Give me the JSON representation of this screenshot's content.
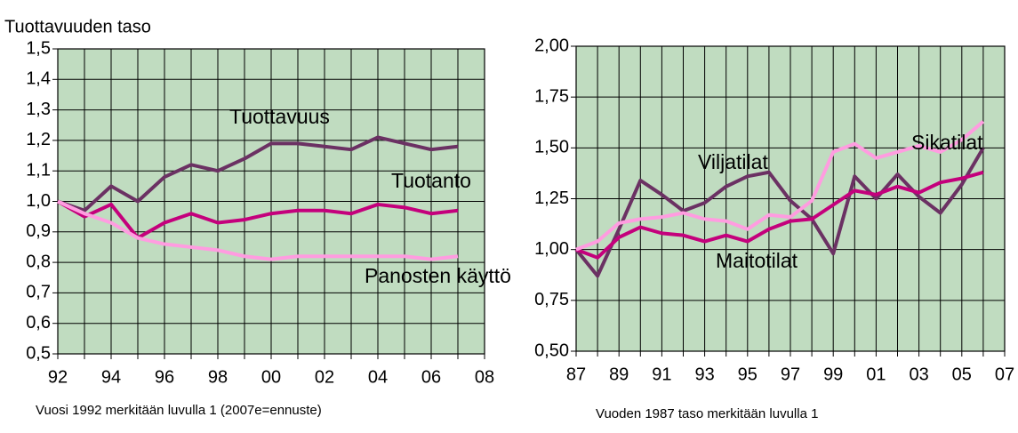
{
  "chart_data": [
    {
      "type": "line",
      "ylabel": "Tuottavuuden taso",
      "caption": "Vuosi 1992 merkitään luvulla 1 (2007e=ennuste)",
      "x": [
        1992,
        1993,
        1994,
        1995,
        1996,
        1997,
        1998,
        1999,
        2000,
        2001,
        2002,
        2003,
        2004,
        2005,
        2006,
        2007
      ],
      "series": [
        {
          "name": "Tuottavuus",
          "color": "#6b3163",
          "values": [
            1.0,
            0.97,
            1.05,
            1.0,
            1.08,
            1.12,
            1.1,
            1.14,
            1.19,
            1.19,
            1.18,
            1.17,
            1.21,
            1.19,
            1.17,
            1.18
          ]
        },
        {
          "name": "Tuotanto",
          "color": "#c4007c",
          "values": [
            1.0,
            0.95,
            0.99,
            0.88,
            0.93,
            0.96,
            0.93,
            0.94,
            0.96,
            0.97,
            0.97,
            0.96,
            0.99,
            0.98,
            0.96,
            0.97
          ]
        },
        {
          "name": "Panosten käyttö",
          "color": "#ff9ce0",
          "values": [
            1.0,
            0.96,
            0.93,
            0.88,
            0.86,
            0.85,
            0.84,
            0.82,
            0.81,
            0.82,
            0.82,
            0.82,
            0.82,
            0.82,
            0.81,
            0.82
          ]
        }
      ],
      "xlim": [
        1992,
        2008
      ],
      "xticks": [
        {
          "value": 1992,
          "label": "92"
        },
        {
          "value": 1994,
          "label": "94"
        },
        {
          "value": 1996,
          "label": "96"
        },
        {
          "value": 1998,
          "label": "98"
        },
        {
          "value": 2000,
          "label": "00"
        },
        {
          "value": 2002,
          "label": "02"
        },
        {
          "value": 2004,
          "label": "04"
        },
        {
          "value": 2006,
          "label": "06"
        },
        {
          "value": 2008,
          "label": "08"
        }
      ],
      "ylim": [
        0.5,
        1.5
      ],
      "yticks": [
        {
          "value": 0.5,
          "label": "0,5"
        },
        {
          "value": 0.6,
          "label": "0,6"
        },
        {
          "value": 0.7,
          "label": "0,7"
        },
        {
          "value": 0.8,
          "label": "0,8"
        },
        {
          "value": 0.9,
          "label": "0,9"
        },
        {
          "value": 1.0,
          "label": "1,0"
        },
        {
          "value": 1.1,
          "label": "1,1"
        },
        {
          "value": 1.2,
          "label": "1,2"
        },
        {
          "value": 1.3,
          "label": "1,3"
        },
        {
          "value": 1.4,
          "label": "1,4"
        },
        {
          "value": 1.5,
          "label": "1,5"
        }
      ],
      "grid": true
    },
    {
      "type": "line",
      "caption": "Vuoden 1987 taso merkitään luvulla 1",
      "x": [
        1987,
        1988,
        1989,
        1990,
        1991,
        1992,
        1993,
        1994,
        1995,
        1996,
        1997,
        1998,
        1999,
        2000,
        2001,
        2002,
        2003,
        2004,
        2005,
        2006
      ],
      "series": [
        {
          "name": "Viljatilat",
          "color": "#6b3163",
          "values": [
            1.0,
            0.87,
            1.1,
            1.34,
            1.27,
            1.19,
            1.23,
            1.31,
            1.36,
            1.38,
            1.24,
            1.15,
            0.98,
            1.36,
            1.25,
            1.37,
            1.26,
            1.18,
            1.32,
            1.5
          ]
        },
        {
          "name": "Maitotilat",
          "color": "#c4007c",
          "values": [
            1.0,
            0.96,
            1.06,
            1.11,
            1.08,
            1.07,
            1.04,
            1.07,
            1.04,
            1.1,
            1.14,
            1.15,
            1.22,
            1.29,
            1.27,
            1.31,
            1.28,
            1.33,
            1.35,
            1.38
          ]
        },
        {
          "name": "Sikatilat",
          "color": "#ff9ce0",
          "values": [
            1.0,
            1.04,
            1.13,
            1.15,
            1.16,
            1.18,
            1.15,
            1.14,
            1.1,
            1.17,
            1.16,
            1.24,
            1.48,
            1.52,
            1.45,
            1.48,
            1.51,
            1.48,
            1.54,
            1.63
          ]
        }
      ],
      "xlim": [
        1987,
        2007
      ],
      "xticks": [
        {
          "value": 1987,
          "label": "87"
        },
        {
          "value": 1989,
          "label": "89"
        },
        {
          "value": 1991,
          "label": "91"
        },
        {
          "value": 1993,
          "label": "93"
        },
        {
          "value": 1995,
          "label": "95"
        },
        {
          "value": 1997,
          "label": "97"
        },
        {
          "value": 1999,
          "label": "99"
        },
        {
          "value": 2001,
          "label": "01"
        },
        {
          "value": 2003,
          "label": "03"
        },
        {
          "value": 2005,
          "label": "05"
        },
        {
          "value": 2007,
          "label": "07"
        }
      ],
      "ylim": [
        0.5,
        2.0
      ],
      "yticks": [
        {
          "value": 0.5,
          "label": "0,50"
        },
        {
          "value": 0.75,
          "label": "0,75"
        },
        {
          "value": 1.0,
          "label": "1,00"
        },
        {
          "value": 1.25,
          "label": "1,25"
        },
        {
          "value": 1.5,
          "label": "1,50"
        },
        {
          "value": 1.75,
          "label": "1,75"
        },
        {
          "value": 2.0,
          "label": "2,00"
        }
      ],
      "grid": true
    }
  ]
}
